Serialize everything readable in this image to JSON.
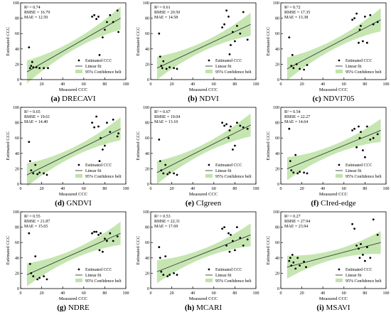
{
  "figure": {
    "xlabel": "Measured CCC",
    "ylabel": "Estimated CCC",
    "x_ticks": [
      0,
      20,
      40,
      60,
      80,
      100
    ],
    "y_ticks": [
      0,
      20,
      40,
      60,
      80,
      100
    ],
    "legend": {
      "points": "Estimated CCC",
      "line": "Linear fit",
      "belt": "95% Confidence belt",
      "placement": "bottom-right"
    },
    "colors": {
      "points": "#000000",
      "line": "#3c3c3c",
      "belt": "#bfe3a8"
    }
  },
  "chart_data": [
    {
      "type": "scatter",
      "label": "(a)",
      "name": "DRECAVI",
      "xlim": [
        0,
        100
      ],
      "ylim": [
        0,
        100
      ],
      "stats": [
        "R² = 0.74",
        "RMSE = 16.79",
        "MAE = 12.50"
      ],
      "fit": [
        6,
        10,
        95,
        80
      ],
      "x": [
        8,
        9,
        10,
        11,
        12,
        15,
        18,
        22,
        26,
        68,
        70,
        72,
        74,
        75,
        78,
        80,
        82,
        85,
        88,
        92,
        93
      ],
      "y": [
        42,
        15,
        18,
        23,
        16,
        16,
        15,
        15,
        15,
        82,
        84,
        79,
        82,
        32,
        55,
        65,
        75,
        84,
        75,
        90,
        62
      ]
    },
    {
      "type": "scatter",
      "label": "(b)",
      "name": "NDVI",
      "xlim": [
        0,
        100
      ],
      "ylim": [
        0,
        100
      ],
      "stats": [
        "R² = 0.61",
        "RMSE = 20.50",
        "MAE = 14.58"
      ],
      "fit": [
        6,
        15,
        95,
        72
      ],
      "x": [
        8,
        9,
        10,
        11,
        12,
        15,
        18,
        22,
        25,
        68,
        70,
        72,
        74,
        75,
        76,
        78,
        80,
        82,
        85,
        88,
        92
      ],
      "y": [
        60,
        30,
        18,
        15,
        24,
        14,
        16,
        15,
        14,
        68,
        72,
        90,
        82,
        33,
        45,
        62,
        50,
        70,
        60,
        88,
        52
      ]
    },
    {
      "type": "scatter",
      "label": "(c)",
      "name": "NDVI705",
      "xlim": [
        0,
        100
      ],
      "ylim": [
        0,
        100
      ],
      "stats": [
        "R² = 0.72",
        "RMSE = 17.35",
        "MAE = 13.38"
      ],
      "fit": [
        6,
        14,
        95,
        78
      ],
      "x": [
        8,
        10,
        11,
        12,
        15,
        18,
        22,
        25,
        68,
        70,
        72,
        74,
        75,
        76,
        78,
        80,
        82,
        85,
        88,
        92
      ],
      "y": [
        55,
        18,
        32,
        15,
        20,
        14,
        13,
        19,
        78,
        80,
        86,
        48,
        65,
        70,
        50,
        82,
        48,
        84,
        72,
        75
      ]
    },
    {
      "type": "scatter",
      "label": "(d)",
      "name": "GNDVI",
      "xlim": [
        0,
        100
      ],
      "ylim": [
        0,
        100
      ],
      "stats": [
        "R² = 0.65",
        "RMSE = 19.61",
        "MAE = 14.40"
      ],
      "fit": [
        6,
        12,
        95,
        72
      ],
      "x": [
        8,
        9,
        10,
        12,
        14,
        16,
        18,
        22,
        25,
        68,
        70,
        72,
        74,
        75,
        76,
        78,
        80,
        82,
        85,
        88,
        92,
        93
      ],
      "y": [
        55,
        30,
        18,
        14,
        25,
        13,
        15,
        14,
        12,
        80,
        74,
        88,
        75,
        30,
        60,
        45,
        50,
        80,
        68,
        84,
        62,
        66
      ]
    },
    {
      "type": "scatter",
      "label": "(e)",
      "name": "CIgreen",
      "xlim": [
        0,
        100
      ],
      "ylim": [
        0,
        100
      ],
      "stats": [
        "R² = 0.67",
        "RMSE = 19.04",
        "MAE = 13.10"
      ],
      "fit": [
        6,
        15,
        95,
        77
      ],
      "x": [
        8,
        9,
        10,
        12,
        14,
        16,
        18,
        22,
        25,
        68,
        70,
        72,
        74,
        75,
        76,
        78,
        80,
        82,
        85,
        88,
        92
      ],
      "y": [
        58,
        30,
        18,
        14,
        25,
        13,
        15,
        14,
        12,
        80,
        76,
        78,
        60,
        70,
        75,
        45,
        50,
        80,
        76,
        74,
        72
      ]
    },
    {
      "type": "scatter",
      "label": "(f)",
      "name": "CIred-edge",
      "xlim": [
        0,
        100
      ],
      "ylim": [
        0,
        100
      ],
      "stats": [
        "R² = 0.54",
        "RMSE = 22.27",
        "MAE = 14.64"
      ],
      "fit": [
        6,
        20,
        95,
        70
      ],
      "x": [
        8,
        9,
        10,
        12,
        14,
        16,
        18,
        22,
        25,
        68,
        70,
        72,
        74,
        75,
        76,
        78,
        80,
        82,
        85,
        88,
        92
      ],
      "y": [
        72,
        30,
        18,
        15,
        38,
        14,
        16,
        15,
        14,
        70,
        72,
        48,
        75,
        60,
        68,
        44,
        35,
        75,
        58,
        60,
        65
      ]
    },
    {
      "type": "scatter",
      "label": "(g)",
      "name": "NDRE",
      "xlim": [
        0,
        100
      ],
      "ylim": [
        0,
        100
      ],
      "stats": [
        "R² = 0.55",
        "RMSE = 21.87",
        "MAE = 15.65"
      ],
      "fit": [
        6,
        18,
        95,
        72
      ],
      "x": [
        8,
        9,
        10,
        12,
        14,
        16,
        18,
        22,
        25,
        68,
        70,
        72,
        74,
        75,
        76,
        78,
        80,
        82,
        85,
        88,
        92
      ],
      "y": [
        72,
        32,
        20,
        16,
        42,
        12,
        14,
        16,
        12,
        72,
        74,
        74,
        70,
        50,
        72,
        48,
        65,
        62,
        72,
        62,
        68
      ]
    },
    {
      "type": "scatter",
      "label": "(h)",
      "name": "MCARI",
      "xlim": [
        0,
        100
      ],
      "ylim": [
        0,
        100
      ],
      "stats": [
        "R² = 0.53",
        "RMSE = 22.31",
        "MAE = 17.69"
      ],
      "fit": [
        6,
        22,
        95,
        70
      ],
      "x": [
        8,
        9,
        10,
        12,
        14,
        16,
        18,
        22,
        25,
        68,
        70,
        72,
        74,
        75,
        76,
        78,
        80,
        82,
        85,
        88,
        92
      ],
      "y": [
        54,
        40,
        22,
        18,
        42,
        16,
        18,
        20,
        18,
        78,
        80,
        56,
        72,
        48,
        70,
        62,
        50,
        80,
        66,
        56,
        64
      ]
    },
    {
      "type": "scatter",
      "label": "(i)",
      "name": "MSAVI",
      "xlim": [
        0,
        100
      ],
      "ylim": [
        0,
        100
      ],
      "stats": [
        "R² = 0.27",
        "RMSE = 27.94",
        "MAE = 23.94"
      ],
      "fit": [
        6,
        28,
        95,
        60
      ],
      "x": [
        8,
        9,
        10,
        11,
        12,
        14,
        16,
        18,
        22,
        24,
        68,
        70,
        72,
        74,
        75,
        76,
        78,
        80,
        82,
        85,
        88,
        92
      ],
      "y": [
        36,
        40,
        30,
        44,
        34,
        26,
        40,
        30,
        35,
        28,
        84,
        78,
        56,
        52,
        40,
        58,
        44,
        36,
        54,
        40,
        90,
        70
      ]
    }
  ]
}
